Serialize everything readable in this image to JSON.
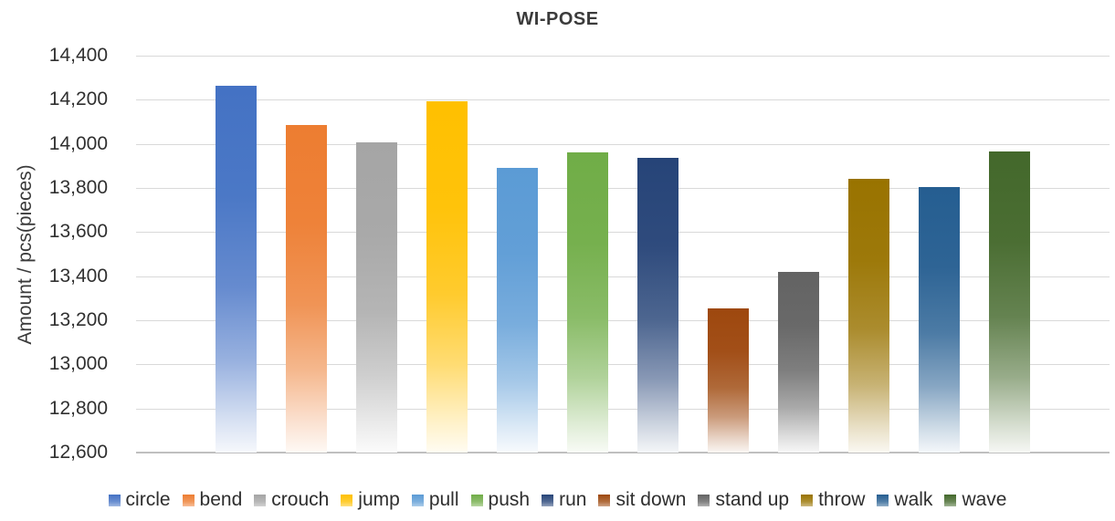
{
  "chart_data": {
    "type": "bar",
    "title": "WI-POSE",
    "ylabel": "Amount / pcs(pieces)",
    "xlabel": "",
    "ylim": [
      12600,
      14400
    ],
    "ytick_step": 200,
    "yticks_bottom_to_top": [
      "12,600",
      "12,800",
      "13,000",
      "13,200",
      "13,400",
      "13,600",
      "13,800",
      "14,000",
      "14,200",
      "14,400"
    ],
    "grid": true,
    "legend_position": "bottom",
    "bar_style": "vertical-gradient-fade-to-white",
    "series": [
      {
        "name": "circle",
        "value": 14265,
        "color": "#4472C4"
      },
      {
        "name": "bend",
        "value": 14085,
        "color": "#ED7D31"
      },
      {
        "name": "crouch",
        "value": 14005,
        "color": "#A5A5A5"
      },
      {
        "name": "jump",
        "value": 14195,
        "color": "#FFC000"
      },
      {
        "name": "pull",
        "value": 13890,
        "color": "#5B9BD5"
      },
      {
        "name": "push",
        "value": 13960,
        "color": "#70AD47"
      },
      {
        "name": "run",
        "value": 13935,
        "color": "#264478"
      },
      {
        "name": "sit down",
        "value": 13255,
        "color": "#9E480E"
      },
      {
        "name": "stand up",
        "value": 13420,
        "color": "#636363"
      },
      {
        "name": "throw",
        "value": 13840,
        "color": "#997300"
      },
      {
        "name": "walk",
        "value": 13805,
        "color": "#255E91"
      },
      {
        "name": "wave",
        "value": 13965,
        "color": "#43682B"
      }
    ]
  }
}
